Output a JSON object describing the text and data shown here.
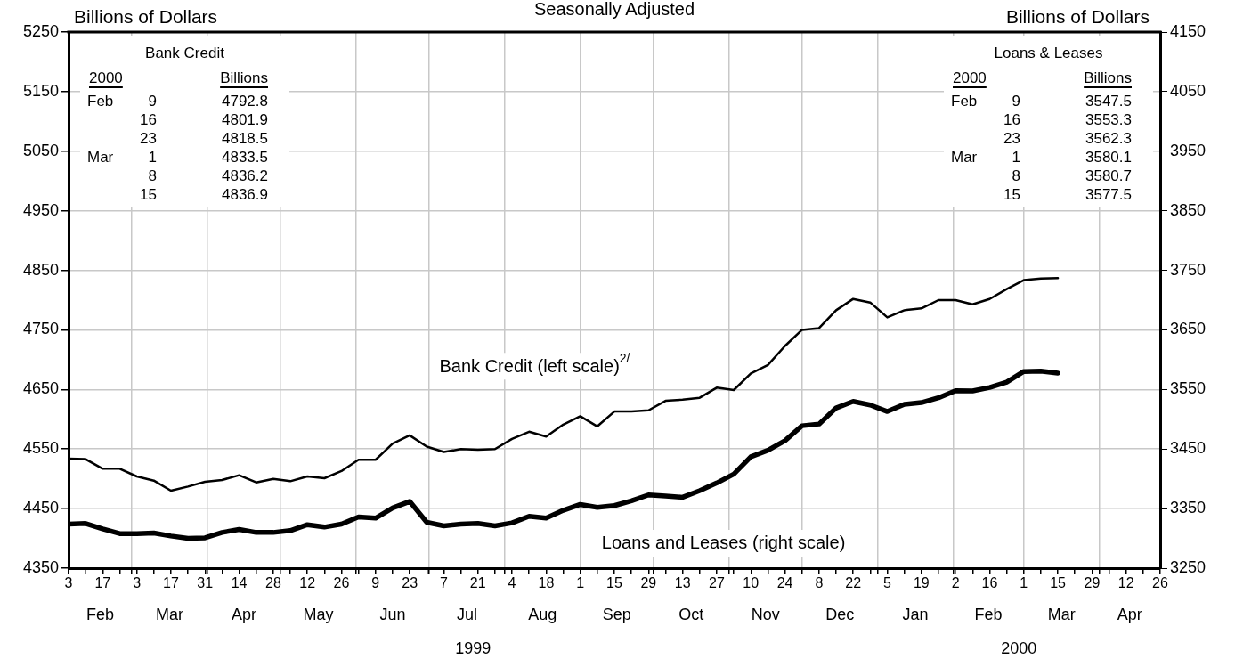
{
  "chart_data": {
    "type": "line",
    "title": "Seasonally Adjusted",
    "ylabel": "Billions of Dollars",
    "y2label": "Billions of Dollars",
    "x": [
      "1999-02-03",
      "1999-02-10",
      "1999-02-17",
      "1999-02-24",
      "1999-03-03",
      "1999-03-10",
      "1999-03-17",
      "1999-03-24",
      "1999-03-31",
      "1999-04-07",
      "1999-04-14",
      "1999-04-21",
      "1999-04-28",
      "1999-05-05",
      "1999-05-12",
      "1999-05-19",
      "1999-05-26",
      "1999-06-02",
      "1999-06-09",
      "1999-06-16",
      "1999-06-23",
      "1999-06-30",
      "1999-07-07",
      "1999-07-14",
      "1999-07-21",
      "1999-07-28",
      "1999-08-04",
      "1999-08-11",
      "1999-08-18",
      "1999-08-25",
      "1999-09-01",
      "1999-09-08",
      "1999-09-15",
      "1999-09-22",
      "1999-09-29",
      "1999-10-06",
      "1999-10-13",
      "1999-10-20",
      "1999-10-27",
      "1999-11-03",
      "1999-11-10",
      "1999-11-17",
      "1999-11-24",
      "1999-12-01",
      "1999-12-08",
      "1999-12-15",
      "1999-12-22",
      "1999-12-29",
      "2000-01-05",
      "2000-01-12",
      "2000-01-19",
      "2000-01-26",
      "2000-02-02",
      "2000-02-09",
      "2000-02-16",
      "2000-02-23",
      "2000-03-01",
      "2000-03-08",
      "2000-03-15"
    ],
    "series": [
      {
        "name": "Bank Credit (left scale)$^{2/}$",
        "color": "#000000",
        "values": [
          4534,
          4533,
          4517,
          4517,
          4504,
          4497,
          4480,
          4487,
          4495,
          4498,
          4506,
          4494,
          4500,
          4496,
          4504,
          4501,
          4513,
          4532,
          4532,
          4559,
          4573,
          4554,
          4545,
          4550,
          4549,
          4550,
          4567,
          4579,
          4571,
          4591,
          4605,
          4588,
          4613,
          4613,
          4615,
          4631,
          4633,
          4636,
          4653,
          4649,
          4677,
          4691,
          4723,
          4750,
          4753,
          4783,
          4802,
          4796,
          4771,
          4783,
          4786,
          4800,
          4800,
          4792.8,
          4801.9,
          4818.5,
          4833.5,
          4836.2,
          4836.9
        ]
      },
      {
        "name": "Loans and Leases (right scale)",
        "color": "#000000",
        "axis": "y2",
        "values": [
          3324,
          3325,
          3316,
          3308,
          3308,
          3309,
          3304,
          3300,
          3301,
          3310,
          3315,
          3310,
          3310,
          3313,
          3323,
          3319,
          3324,
          3336,
          3334,
          3351,
          3362,
          3327,
          3321,
          3324,
          3325,
          3321,
          3326,
          3337,
          3334,
          3347,
          3357,
          3352,
          3355,
          3363,
          3373,
          3371,
          3369,
          3380,
          3393,
          3408,
          3437,
          3448,
          3464,
          3489,
          3492,
          3519,
          3530,
          3524,
          3513,
          3525,
          3528,
          3536,
          3548,
          3547.5,
          3553.3,
          3562.3,
          3580.1,
          3580.7,
          3577.5
        ]
      }
    ],
    "xlim": [
      "1999-02-03",
      "2000-04-26"
    ],
    "xticks": [
      {
        "value": "1999-02-03",
        "label": "3"
      },
      {
        "value": "1999-02-10",
        "label": null
      },
      {
        "value": "1999-02-17",
        "label": "17"
      },
      {
        "value": "1999-02-24",
        "label": null
      },
      {
        "value": "1999-03-01",
        "label": null
      },
      {
        "value": "1999-03-03",
        "label": "3"
      },
      {
        "value": "1999-03-10",
        "label": null
      },
      {
        "value": "1999-03-17",
        "label": "17"
      },
      {
        "value": "1999-03-24",
        "label": null
      },
      {
        "value": "1999-03-31",
        "label": "31"
      },
      {
        "value": "1999-04-01",
        "label": null
      },
      {
        "value": "1999-04-07",
        "label": null
      },
      {
        "value": "1999-04-14",
        "label": "14"
      },
      {
        "value": "1999-04-21",
        "label": null
      },
      {
        "value": "1999-04-28",
        "label": "28"
      },
      {
        "value": "1999-05-01",
        "label": null
      },
      {
        "value": "1999-05-05",
        "label": null
      },
      {
        "value": "1999-05-12",
        "label": "12"
      },
      {
        "value": "1999-05-19",
        "label": null
      },
      {
        "value": "1999-05-26",
        "label": "26"
      },
      {
        "value": "1999-06-01",
        "label": null
      },
      {
        "value": "1999-06-02",
        "label": null
      },
      {
        "value": "1999-06-09",
        "label": "9"
      },
      {
        "value": "1999-06-16",
        "label": null
      },
      {
        "value": "1999-06-23",
        "label": "23"
      },
      {
        "value": "1999-06-30",
        "label": null
      },
      {
        "value": "1999-07-01",
        "label": null
      },
      {
        "value": "1999-07-07",
        "label": "7"
      },
      {
        "value": "1999-07-14",
        "label": null
      },
      {
        "value": "1999-07-21",
        "label": "21"
      },
      {
        "value": "1999-07-28",
        "label": null
      },
      {
        "value": "1999-08-01",
        "label": null
      },
      {
        "value": "1999-08-04",
        "label": "4"
      },
      {
        "value": "1999-08-11",
        "label": null
      },
      {
        "value": "1999-08-18",
        "label": "18"
      },
      {
        "value": "1999-08-25",
        "label": null
      },
      {
        "value": "1999-09-01",
        "label": "1"
      },
      {
        "value": "1999-09-08",
        "label": null
      },
      {
        "value": "1999-09-15",
        "label": "15"
      },
      {
        "value": "1999-09-22",
        "label": null
      },
      {
        "value": "1999-09-29",
        "label": "29"
      },
      {
        "value": "1999-10-01",
        "label": null
      },
      {
        "value": "1999-10-06",
        "label": null
      },
      {
        "value": "1999-10-13",
        "label": "13"
      },
      {
        "value": "1999-10-20",
        "label": null
      },
      {
        "value": "1999-10-27",
        "label": "27"
      },
      {
        "value": "1999-11-01",
        "label": null
      },
      {
        "value": "1999-11-03",
        "label": null
      },
      {
        "value": "1999-11-10",
        "label": "10"
      },
      {
        "value": "1999-11-17",
        "label": null
      },
      {
        "value": "1999-11-24",
        "label": "24"
      },
      {
        "value": "1999-12-01",
        "label": null
      },
      {
        "value": "1999-12-08",
        "label": "8"
      },
      {
        "value": "1999-12-15",
        "label": null
      },
      {
        "value": "1999-12-22",
        "label": "22"
      },
      {
        "value": "1999-12-29",
        "label": null
      },
      {
        "value": "2000-01-01",
        "label": null
      },
      {
        "value": "2000-01-05",
        "label": "5"
      },
      {
        "value": "2000-01-12",
        "label": null
      },
      {
        "value": "2000-01-19",
        "label": "19"
      },
      {
        "value": "2000-01-26",
        "label": null
      },
      {
        "value": "2000-02-01",
        "label": null
      },
      {
        "value": "2000-02-02",
        "label": "2"
      },
      {
        "value": "2000-02-09",
        "label": null
      },
      {
        "value": "2000-02-16",
        "label": "16"
      },
      {
        "value": "2000-02-23",
        "label": null
      },
      {
        "value": "2000-03-01",
        "label": "1"
      },
      {
        "value": "2000-03-08",
        "label": null
      },
      {
        "value": "2000-03-15",
        "label": "15"
      },
      {
        "value": "2000-03-22",
        "label": null
      },
      {
        "value": "2000-03-29",
        "label": "29"
      },
      {
        "value": "2000-04-01",
        "label": null
      },
      {
        "value": "2000-04-05",
        "label": null
      },
      {
        "value": "2000-04-12",
        "label": "12"
      },
      {
        "value": "2000-04-19",
        "label": null
      },
      {
        "value": "2000-04-26",
        "label": "26"
      }
    ],
    "ylim": [
      4350,
      5250
    ],
    "yticks": [
      4350,
      4450,
      4550,
      4650,
      4750,
      4850,
      4950,
      5050,
      5150,
      5250
    ],
    "y2lim": [
      3250,
      4150
    ],
    "y2ticks": [
      3250,
      3350,
      3450,
      3550,
      3650,
      3750,
      3850,
      3950,
      4050,
      4150
    ],
    "grid": true,
    "legend": false,
    "marker": "none",
    "annotations": [
      "Bank Credit\n2000\tBillions\nFeb\t9\t4792.8\n\t16\t4801.9\n\t23\t4818.5\nMar\t1\t4833.5\n\t8\t4836.2\n\t15\t4836.9",
      "Loans & Leases\n2000\tBillions\nFeb\t9\t3547.5\n\t16\t3553.3\n\t23\t3562.3\nMar\t1\t3580.1\n\t8\t3580.7\n\t15\t3577.5",
      "Feb",
      "Mar",
      "Apr",
      "May",
      "Jun",
      "Jul",
      "Aug",
      "Sep",
      "Oct",
      "Nov",
      "Dec",
      "Jan",
      "Feb",
      "Mar",
      "Apr",
      "1999",
      "2000"
    ]
  }
}
